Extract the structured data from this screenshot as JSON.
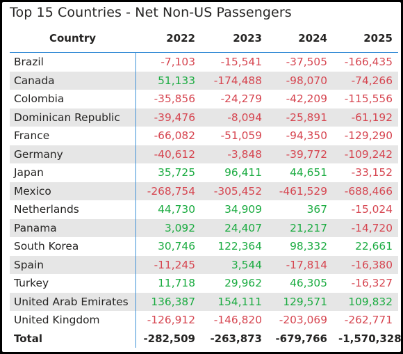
{
  "title": "Top 15 Countries - Net Non-US Passengers",
  "columns": [
    "Country",
    "2022",
    "2023",
    "2024",
    "2025"
  ],
  "colors": {
    "negative": "#d64550",
    "positive": "#1aab40",
    "divider": "#3a8fd6"
  },
  "rows": [
    [
      "Brazil",
      "-7,103",
      "-15,541",
      "-37,505",
      "-166,435"
    ],
    [
      "Canada",
      "51,133",
      "-174,488",
      "-98,070",
      "-74,266"
    ],
    [
      "Colombia",
      "-35,856",
      "-24,279",
      "-42,209",
      "-115,556"
    ],
    [
      "Dominican Republic",
      "-39,476",
      "-8,094",
      "-25,891",
      "-61,192"
    ],
    [
      "France",
      "-66,082",
      "-51,059",
      "-94,350",
      "-129,290"
    ],
    [
      "Germany",
      "-40,612",
      "-3,848",
      "-39,772",
      "-109,242"
    ],
    [
      "Japan",
      "35,725",
      "96,411",
      "44,651",
      "-33,152"
    ],
    [
      "Mexico",
      "-268,754",
      "-305,452",
      "-461,529",
      "-688,466"
    ],
    [
      "Netherlands",
      "44,730",
      "34,909",
      "367",
      "-15,024"
    ],
    [
      "Panama",
      "3,092",
      "24,407",
      "21,217",
      "-14,720"
    ],
    [
      "South Korea",
      "30,746",
      "122,364",
      "98,332",
      "22,661"
    ],
    [
      "Spain",
      "-11,245",
      "3,544",
      "-17,814",
      "-16,380"
    ],
    [
      "Turkey",
      "11,718",
      "29,962",
      "46,305",
      "-16,327"
    ],
    [
      "United Arab Emirates",
      "136,387",
      "154,111",
      "129,571",
      "109,832"
    ],
    [
      "United Kingdom",
      "-126,912",
      "-146,820",
      "-203,069",
      "-262,771"
    ]
  ],
  "total": [
    "Total",
    "-282,509",
    "-263,873",
    "-679,766",
    "-1,570,328"
  ]
}
